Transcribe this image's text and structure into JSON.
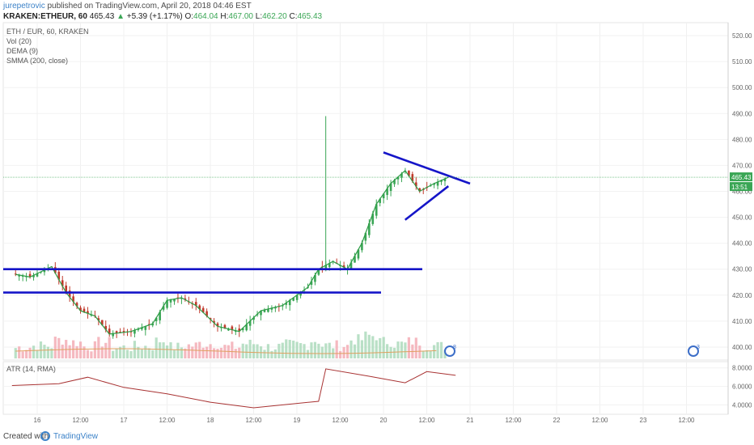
{
  "header": {
    "author": "jurepetrovic",
    "published_text": "published on TradingView.com, April 20, 2018 04:46 EST",
    "symbol_line": {
      "symbol": "KRAKEN:ETHEUR, 60",
      "last": "465.43",
      "change_arrow": "▲",
      "change": "+5.39 (+1.17%)",
      "open_label": "O:",
      "open": "464.04",
      "high_label": "H:",
      "high": "467.00",
      "low_label": "L:",
      "low": "462.20",
      "close_label": "C:",
      "close": "465.43"
    }
  },
  "indicators": {
    "title": "ETH / EUR, 60, KRAKEN",
    "vol": "Vol (20)",
    "dema": "DEMA (9)",
    "smma": "SMMA (200, close)",
    "atr": "ATR (14, RMA)"
  },
  "price_axis": {
    "ticks": [
      "520.00",
      "510.00",
      "500.00",
      "490.00",
      "480.00",
      "470.00",
      "460.00",
      "450.00",
      "440.00",
      "430.00",
      "420.00",
      "410.00",
      "400.00"
    ],
    "last_price_label": "465.43",
    "countdown_label": "13:51"
  },
  "atr_axis": {
    "ticks": [
      "8.0000",
      "6.0000",
      "4.0000"
    ]
  },
  "time_axis": {
    "ticks": [
      "16",
      "12:00",
      "17",
      "12:00",
      "18",
      "12:00",
      "19",
      "12:00",
      "20",
      "12:00",
      "21",
      "12:00",
      "22",
      "12:00",
      "23",
      "12:00"
    ]
  },
  "markers": [
    {
      "label": "8"
    },
    {
      "label": "3"
    }
  ],
  "footer": {
    "created_with": "Created with",
    "brand": "TradingView"
  },
  "colors": {
    "up": "#3aa655",
    "down": "#c0392b",
    "dema": "#2e9c46",
    "smma": "#e0a060",
    "drawing": "#1515c8",
    "vol_up": "#a8d8b8",
    "vol_down": "#f2a8b0",
    "atr": "#a83232",
    "last_price": "#3aa655"
  },
  "chart_data": [
    {
      "type": "candlestick",
      "title": "ETH / EUR, 60, KRAKEN",
      "ylim": [
        395,
        525
      ],
      "x": [
        "16",
        "12:00",
        "17",
        "12:00",
        "18",
        "12:00",
        "19",
        "12:00",
        "20",
        "12:00"
      ],
      "close_path": [
        [
          "15 18:00",
          428
        ],
        [
          "15 22:00",
          427
        ],
        [
          "16 04:00",
          431
        ],
        [
          "16 08:00",
          421
        ],
        [
          "16 12:00",
          414
        ],
        [
          "16 16:00",
          412
        ],
        [
          "16 20:00",
          405
        ],
        [
          "17 02:00",
          406
        ],
        [
          "17 08:00",
          409
        ],
        [
          "17 12:00",
          418
        ],
        [
          "17 16:00",
          419
        ],
        [
          "17 20:00",
          416
        ],
        [
          "18 02:00",
          408
        ],
        [
          "18 08:00",
          406
        ],
        [
          "18 14:00",
          414
        ],
        [
          "18 20:00",
          416
        ],
        [
          "19 00:00",
          420
        ],
        [
          "19 03:00",
          423
        ],
        [
          "19 06:00",
          430
        ],
        [
          "19 10:00",
          433
        ],
        [
          "19 14:00",
          430
        ],
        [
          "19 18:00",
          440
        ],
        [
          "19 22:00",
          455
        ],
        [
          "20 02:00",
          463
        ],
        [
          "20 06:00",
          468
        ],
        [
          "20 10:00",
          460
        ],
        [
          "20 14:00",
          463
        ],
        [
          "20 18:00",
          465.43
        ]
      ],
      "spike_high": 489,
      "last": 465.43,
      "horizontal_lines": [
        430,
        421
      ],
      "triangle": {
        "upper": [
          [
            475,
            "20 00:00"
          ],
          [
            463,
            "21 00:00"
          ]
        ],
        "lower": [
          [
            449,
            "20 06:00"
          ],
          [
            462,
            "20 18:00"
          ]
        ]
      }
    },
    {
      "type": "line",
      "title": "ATR (14, RMA)",
      "ylim": [
        3,
        8.5
      ],
      "x": [
        "15 17:00",
        "16 06:00",
        "16 14:00",
        "17 00:00",
        "17 12:00",
        "18 00:00",
        "18 12:00",
        "19 06:00",
        "19 08:00",
        "19 20:00",
        "20 06:00",
        "20 12:00",
        "20 20:00"
      ],
      "values": [
        6.1,
        6.3,
        7.0,
        5.9,
        5.2,
        4.3,
        3.7,
        4.4,
        7.9,
        7.1,
        6.4,
        7.6,
        7.2
      ]
    }
  ]
}
